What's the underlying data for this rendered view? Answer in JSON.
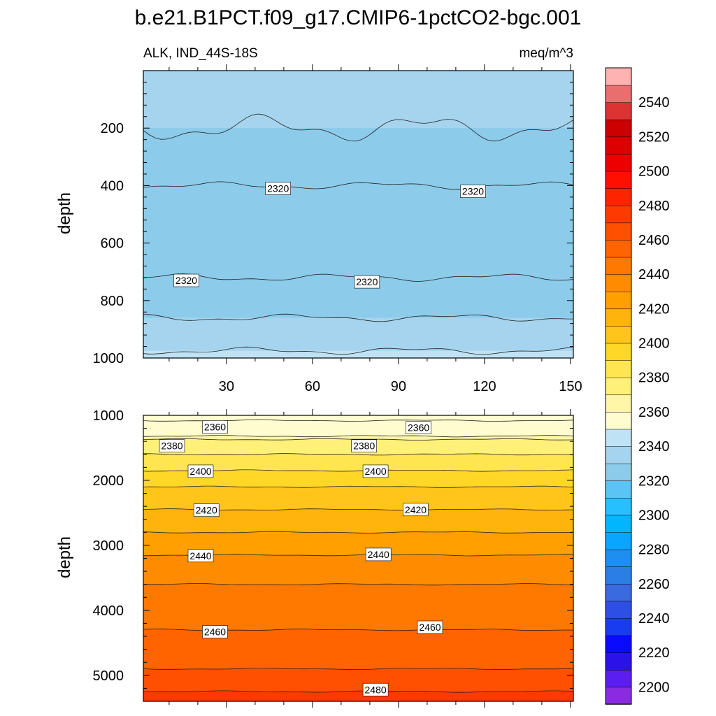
{
  "title": "b.e21.B1PCT.f09_g17.CMIP6-1pctCO2-bgc.001",
  "units": "meq/m^3",
  "colors": {
    "levels": [
      "#8a2be2",
      "#5b1ef0",
      "#2a12e8",
      "#0a0aff",
      "#1a3cf0",
      "#2d4fe6",
      "#3a6ae0",
      "#2a7ee6",
      "#1e8ff0",
      "#0aa5ff",
      "#00b7ff",
      "#26c0ff",
      "#5cc4f5",
      "#8ccbea",
      "#a6d4ee",
      "#bfe3f5",
      "#fffdd0",
      "#fff6a8",
      "#fff07a",
      "#ffe550",
      "#ffd727",
      "#ffc51a",
      "#ffb30d",
      "#ff9f00",
      "#ff8c00",
      "#ff7800",
      "#ff6400",
      "#ff4f00",
      "#ff3a00",
      "#ff2400",
      "#ff0f00",
      "#ee0000",
      "#dd0000",
      "#cc0000",
      "#dd3333",
      "#ea6e6e",
      "#ffb2b2"
    ]
  },
  "chart_data": [
    {
      "type": "contour",
      "panel": "upper",
      "subtitle_left": "ALK, IND_44S-18S",
      "subtitle_right": "meq/m^3",
      "ylabel": "depth",
      "xlabel": "",
      "xlim": [
        1,
        151
      ],
      "ylim": [
        1000,
        0
      ],
      "xticks": [
        "30",
        "60",
        "90",
        "120",
        "150"
      ],
      "yticks": [
        "200",
        "400",
        "600",
        "800",
        "1000"
      ],
      "contour_lines": [
        {
          "level": 2330,
          "depth": 200
        },
        {
          "level": 2320,
          "depth": 400
        },
        {
          "level": 2320,
          "depth": 720
        },
        {
          "level": 2330,
          "depth": 860
        },
        {
          "level": 2340,
          "depth": 975
        }
      ],
      "contour_labels": [
        {
          "text": "2320",
          "x": 48,
          "depth": 410
        },
        {
          "text": "2320",
          "x": 116,
          "depth": 420
        },
        {
          "text": "2320",
          "x": 16,
          "depth": 730
        },
        {
          "text": "2320",
          "x": 79,
          "depth": 735
        }
      ]
    },
    {
      "type": "contour",
      "panel": "lower",
      "ylabel": "depth",
      "xlabel": "",
      "xlim": [
        1,
        151
      ],
      "ylim": [
        5400,
        1000
      ],
      "xticks": [],
      "yticks": [
        "1000",
        "2000",
        "3000",
        "4000",
        "5000"
      ],
      "contour_lines": [
        {
          "level": 2350,
          "depth": 1080
        },
        {
          "level": 2360,
          "depth": 1320
        },
        {
          "level": 2370,
          "depth": 1370
        },
        {
          "level": 2380,
          "depth": 1600
        },
        {
          "level": 2390,
          "depth": 1850
        },
        {
          "level": 2400,
          "depth": 2100
        },
        {
          "level": 2410,
          "depth": 2450
        },
        {
          "level": 2420,
          "depth": 2800
        },
        {
          "level": 2430,
          "depth": 3150
        },
        {
          "level": 2440,
          "depth": 3600
        },
        {
          "level": 2450,
          "depth": 4300
        },
        {
          "level": 2460,
          "depth": 4900
        },
        {
          "level": 2470,
          "depth": 5250
        }
      ],
      "contour_labels": [
        {
          "text": "2360",
          "x": 26,
          "depth": 1180
        },
        {
          "text": "2360",
          "x": 97,
          "depth": 1190
        },
        {
          "text": "2380",
          "x": 11,
          "depth": 1470
        },
        {
          "text": "2380",
          "x": 78,
          "depth": 1470
        },
        {
          "text": "2400",
          "x": 21,
          "depth": 1860
        },
        {
          "text": "2400",
          "x": 82,
          "depth": 1860
        },
        {
          "text": "2420",
          "x": 23,
          "depth": 2460
        },
        {
          "text": "2420",
          "x": 96,
          "depth": 2450
        },
        {
          "text": "2440",
          "x": 21,
          "depth": 3160
        },
        {
          "text": "2440",
          "x": 83,
          "depth": 3140
        },
        {
          "text": "2460",
          "x": 26,
          "depth": 4330
        },
        {
          "text": "2460",
          "x": 101,
          "depth": 4260
        },
        {
          "text": "2480",
          "x": 82,
          "depth": 5220
        }
      ]
    },
    {
      "type": "colorbar",
      "levels_min": 2190,
      "levels_max": 2560,
      "step": 10,
      "tick_labels": [
        "2200",
        "2220",
        "2240",
        "2260",
        "2280",
        "2300",
        "2320",
        "2340",
        "2360",
        "2380",
        "2400",
        "2420",
        "2440",
        "2460",
        "2480",
        "2500",
        "2520",
        "2540"
      ]
    }
  ]
}
